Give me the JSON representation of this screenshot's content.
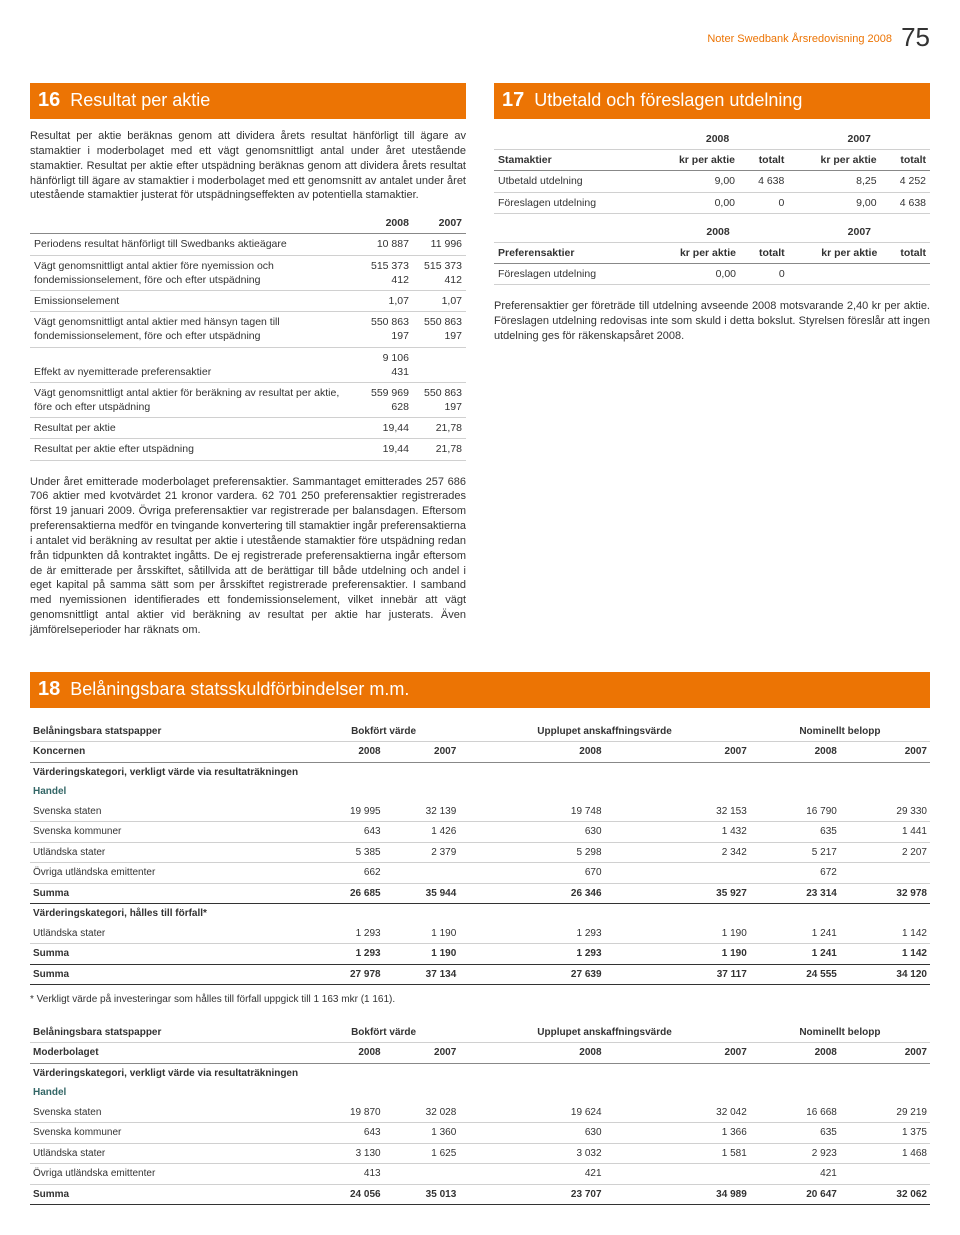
{
  "header": {
    "section": "Noter",
    "doc": "Swedbank Årsredovisning 2008",
    "page": "75"
  },
  "note16": {
    "num": "16",
    "title": "Resultat per aktie",
    "p1": "Resultat per aktie beräknas genom att dividera årets resultat hänförligt till ägare av stamaktier i moderbolaget med ett vägt genomsnittligt antal under året utestående stamaktier. Resultat per aktie efter utspädning beräknas genom att dividera årets resultat hänförligt till ägare av stamaktier i moderbolaget med ett genomsnitt av antalet under året utestående stamaktier justerat för utspädningseffekten av potentiella stamaktier.",
    "cols": [
      "",
      "2008",
      "2007"
    ],
    "rows": [
      [
        "Periodens resultat hänförligt till Swedbanks aktieägare",
        "10 887",
        "11 996"
      ],
      [
        "Vägt genomsnittligt antal aktier före nyemission och fondemissionselement, före och efter utspädning",
        "515 373 412",
        "515 373 412"
      ],
      [
        "Emissionselement",
        "1,07",
        "1,07"
      ],
      [
        "Vägt genomsnittligt antal aktier med hänsyn tagen till fondemissionselement, före och efter utspädning",
        "550 863 197",
        "550 863 197"
      ],
      [
        "Effekt av nyemitterade preferensaktier",
        "9 106 431",
        ""
      ],
      [
        "Vägt genomsnittligt antal aktier för beräkning av resultat per aktie, före och efter utspädning",
        "559 969 628",
        "550 863 197"
      ],
      [
        "Resultat per aktie",
        "19,44",
        "21,78"
      ],
      [
        "Resultat per aktie efter utspädning",
        "19,44",
        "21,78"
      ]
    ],
    "p2": "Under året emitterade moderbolaget preferensaktier. Sammantaget emitterades 257 686 706 aktier med kvotvärdet 21 kronor vardera. 62 701 250 preferensaktier registrerades först 19 januari 2009. Övriga preferensaktier var registrerade per balansdagen. Eftersom preferensaktierna medför en tvingande konvertering till stamaktier ingår preferensaktierna i antalet vid beräkning av resultat per aktie i utestående stamaktier före utspädning redan från tidpunkten då kontraktet ingåtts. De ej registrerade preferensaktierna ingår eftersom de är emitterade per årsskiftet, såtillvida att de berättigar till både utdelning och andel i eget kapital på samma sätt som per årsskiftet registrerade preferensaktier. I samband med nyemissionen identifierades ett fondemissionselement, vilket innebär att vägt genomsnittligt antal aktier vid beräkning av resultat per aktie har justerats. Även jämförelseperioder har räknats om."
  },
  "note17": {
    "num": "17",
    "title": "Utbetald och föreslagen utdelning",
    "group_years": [
      "2008",
      "2007"
    ],
    "stam_head": [
      "Stamaktier",
      "kr per aktie",
      "totalt",
      "kr per aktie",
      "totalt"
    ],
    "stam_rows": [
      [
        "Utbetald utdelning",
        "9,00",
        "4 638",
        "8,25",
        "4 252"
      ],
      [
        "Föreslagen utdelning",
        "0,00",
        "0",
        "9,00",
        "4 638"
      ]
    ],
    "pref_head": [
      "Preferensaktier",
      "kr per aktie",
      "totalt",
      "kr per aktie",
      "totalt"
    ],
    "pref_rows": [
      [
        "Föreslagen utdelning",
        "0,00",
        "0",
        "",
        ""
      ]
    ],
    "p": "Preferensaktier ger företräde till utdelning avseende 2008 motsvarande 2,40 kr per aktie. Föreslagen utdelning redovisas inte som skuld i detta bokslut. Styrelsen föreslår att ingen utdelning ges för räkenskapsåret 2008."
  },
  "note18": {
    "num": "18",
    "title": "Belåningsbara statsskuldförbindelser m.m.",
    "groups": [
      "Bokfört värde",
      "Upplupet anskaffningsvärde",
      "Nominellt belopp"
    ],
    "yearcols": [
      "2008",
      "2007",
      "2008",
      "2007",
      "2008",
      "2007"
    ],
    "koncernen_label": "Koncernen",
    "moderbolaget_label": "Moderbolaget",
    "section_label": "Belåningsbara statspapper",
    "vk_label": "Värderingskategori, verkligt värde via resultaträkningen",
    "handel_label": "Handel",
    "vk2_label": "Värderingskategori, hålles till förfall*",
    "rows_koncernen_handel": [
      [
        "Svenska staten",
        "19 995",
        "32 139",
        "19 748",
        "32 153",
        "16 790",
        "29 330"
      ],
      [
        "Svenska kommuner",
        "643",
        "1 426",
        "630",
        "1 432",
        "635",
        "1 441"
      ],
      [
        "Utländska stater",
        "5 385",
        "2 379",
        "5 298",
        "2 342",
        "5 217",
        "2 207"
      ],
      [
        "Övriga utländska emittenter",
        "662",
        "",
        "670",
        "",
        "672",
        ""
      ]
    ],
    "sum1": [
      "Summa",
      "26 685",
      "35 944",
      "26 346",
      "35 927",
      "23 314",
      "32 978"
    ],
    "rows_koncernen_vk2": [
      [
        "Utländska stater",
        "1 293",
        "1 190",
        "1 293",
        "1 190",
        "1 241",
        "1 142"
      ]
    ],
    "sum2": [
      "Summa",
      "1 293",
      "1 190",
      "1 293",
      "1 190",
      "1 241",
      "1 142"
    ],
    "sum_total_k": [
      "Summa",
      "27 978",
      "37 134",
      "27 639",
      "37 117",
      "24 555",
      "34 120"
    ],
    "footnote": "* Verkligt värde på investeringar som hålles till förfall uppgick till 1 163 mkr (1 161).",
    "rows_moder_handel": [
      [
        "Svenska staten",
        "19 870",
        "32 028",
        "19 624",
        "32 042",
        "16 668",
        "29 219"
      ],
      [
        "Svenska kommuner",
        "643",
        "1 360",
        "630",
        "1 366",
        "635",
        "1 375"
      ],
      [
        "Utländska stater",
        "3 130",
        "1 625",
        "3 032",
        "1 581",
        "2 923",
        "1 468"
      ],
      [
        "Övriga utländska emittenter",
        "413",
        "",
        "421",
        "",
        "421",
        ""
      ]
    ],
    "sum_moder": [
      "Summa",
      "24 056",
      "35 013",
      "23 707",
      "34 989",
      "20 647",
      "32 062"
    ]
  }
}
